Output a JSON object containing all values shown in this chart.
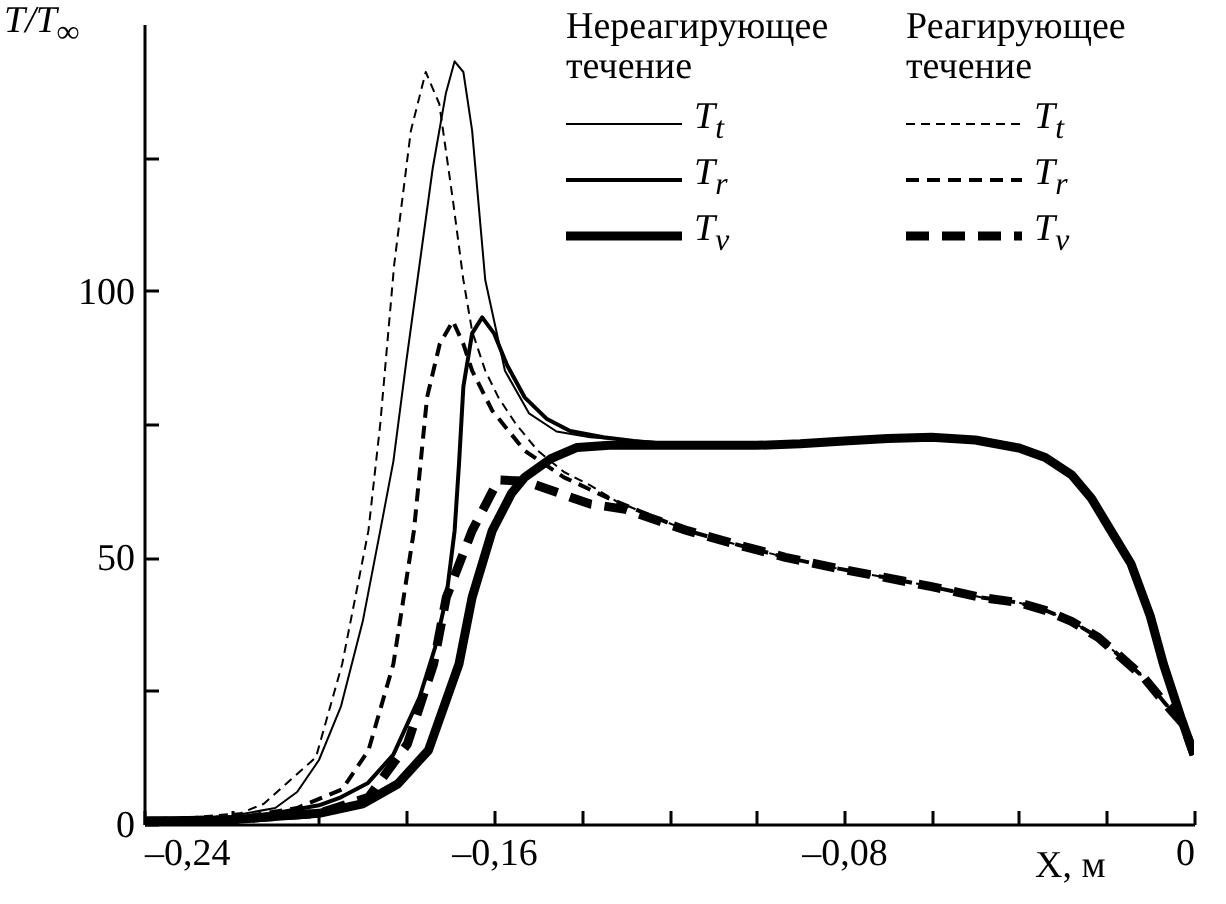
{
  "chart_data": {
    "type": "line",
    "xlabel": "X, м",
    "ylabel": "T/T$_{∞}$",
    "legend": "top right",
    "annotations": [
      "Нереагирующее течение",
      "Реагирующее течение"
    ],
    "xlim": [
      -0.24,
      0
    ],
    "ylim": [
      0,
      150
    ],
    "xticks": [
      {
        "value": -0.24,
        "label": "–0,24"
      },
      {
        "value": -0.22,
        "label": null
      },
      {
        "value": -0.2,
        "label": null
      },
      {
        "value": -0.18,
        "label": null
      },
      {
        "value": -0.16,
        "label": "–0,16"
      },
      {
        "value": -0.14,
        "label": null
      },
      {
        "value": -0.12,
        "label": null
      },
      {
        "value": -0.1,
        "label": null
      },
      {
        "value": -0.08,
        "label": "–0,08"
      },
      {
        "value": -0.06,
        "label": null
      },
      {
        "value": -0.04,
        "label": null
      },
      {
        "value": -0.02,
        "label": null
      },
      0
    ],
    "yticks": [
      0,
      {
        "value": 25,
        "label": null
      },
      50,
      {
        "value": 75,
        "label": null
      },
      100,
      {
        "value": 125,
        "label": null
      }
    ],
    "series": [
      {
        "name": "T$_{t}$",
        "color": "#000000",
        "line_style": "solid",
        "x": [
          -0.24,
          -0.23,
          -0.22,
          -0.21,
          -0.205,
          -0.2,
          -0.195,
          -0.19,
          -0.186,
          -0.183,
          -0.18,
          -0.177,
          -0.174,
          -0.171,
          -0.169,
          -0.167,
          -0.165,
          -0.162,
          -0.1575,
          -0.152,
          -0.1457,
          -0.138,
          -0.13,
          -0.12,
          -0.11,
          -0.1,
          -0.09,
          -0.08,
          -0.07,
          -0.06,
          -0.05,
          -0.04,
          -0.034,
          -0.028,
          -0.0234,
          -0.019,
          -0.0144,
          -0.01,
          -0.007,
          -0.003,
          0
        ],
        "values": [
          1,
          1,
          1.5,
          3,
          6,
          12,
          22,
          38,
          55,
          68,
          87,
          105,
          123,
          137,
          143,
          141,
          130,
          102,
          85,
          77,
          73.6,
          72.5,
          72,
          71.5,
          71,
          71,
          71.3,
          71.8,
          72.3,
          72.5,
          72,
          70.5,
          68.7,
          65.5,
          61,
          55,
          48.8,
          39,
          30,
          20,
          13
        ]
      },
      {
        "name": "T$_{r}$",
        "color": "#000000",
        "line_style": "solid",
        "x": [
          -0.24,
          -0.22,
          -0.21,
          -0.2,
          -0.195,
          -0.1888,
          -0.183,
          -0.177,
          -0.1735,
          -0.1709,
          -0.169,
          -0.168,
          -0.167,
          -0.165,
          -0.1627,
          -0.16,
          -0.157,
          -0.153,
          -0.148,
          -0.1426,
          -0.135,
          -0.128,
          -0.12,
          -0.11,
          -0.1,
          -0.09,
          -0.08,
          -0.07,
          -0.06,
          -0.05,
          -0.04,
          -0.034,
          -0.028,
          -0.0234,
          -0.019,
          -0.0144,
          -0.01,
          -0.007,
          -0.003,
          0
        ],
        "values": [
          1,
          1,
          2,
          3.5,
          5,
          7.7,
          13,
          23.8,
          33,
          42.5,
          55,
          67.5,
          82,
          92,
          95,
          92,
          86,
          80,
          76,
          73.7,
          72.5,
          71.8,
          71.2,
          71,
          71,
          71.3,
          71.8,
          72.3,
          72.5,
          72,
          70.5,
          68.7,
          65.5,
          61,
          55,
          48.8,
          39,
          30,
          20,
          13
        ]
      },
      {
        "name": "T$_{v}$",
        "color": "#000000",
        "line_style": "solid",
        "x": [
          -0.24,
          -0.22,
          -0.2,
          -0.19,
          -0.182,
          -0.175,
          -0.168,
          -0.165,
          -0.1604,
          -0.156,
          -0.153,
          -0.147,
          -0.141,
          -0.1336,
          -0.125,
          -0.12,
          -0.11,
          -0.1,
          -0.09,
          -0.08,
          -0.07,
          -0.06,
          -0.05,
          -0.04,
          -0.034,
          -0.028,
          -0.0234,
          -0.019,
          -0.0144,
          -0.01,
          -0.007,
          -0.003,
          0
        ],
        "values": [
          0.5,
          0.8,
          2,
          3.8,
          7.5,
          13.8,
          30,
          42.5,
          55,
          62,
          65,
          68.5,
          70.6,
          71,
          71,
          71,
          71,
          71,
          71.3,
          71.8,
          72.3,
          72.5,
          72,
          70.5,
          68.7,
          65.5,
          61,
          55,
          48.8,
          39,
          30,
          20,
          13
        ]
      },
      {
        "name": "T$_{t}$",
        "color": "#000000",
        "line_style": "dashed",
        "x": [
          -0.24,
          -0.23,
          -0.218,
          -0.2126,
          -0.2007,
          -0.1947,
          -0.1887,
          -0.186,
          -0.1828,
          -0.179,
          -0.1756,
          -0.1725,
          -0.1694,
          -0.167,
          -0.165,
          -0.162,
          -0.159,
          -0.155,
          -0.15,
          -0.144,
          -0.138,
          -0.132,
          -0.1158,
          -0.105,
          -0.0934,
          -0.082,
          -0.071,
          -0.06,
          -0.0487,
          -0.04,
          -0.0338,
          -0.028,
          -0.0219,
          -0.017,
          -0.0115,
          -0.007,
          -0.0025,
          0
        ],
        "values": [
          1,
          1.2,
          2,
          3.8,
          12.5,
          30,
          55,
          75,
          105,
          130,
          141,
          135,
          117,
          102,
          92.4,
          85,
          80,
          75,
          70,
          66,
          63.5,
          60.5,
          55,
          52.5,
          50,
          48,
          46.3,
          44.5,
          42.5,
          41.5,
          40,
          38,
          35,
          31.5,
          27.5,
          23,
          18.8,
          13
        ]
      },
      {
        "name": "T$_{r}$",
        "color": "#000000",
        "line_style": "dashed",
        "x": [
          -0.24,
          -0.22,
          -0.205,
          -0.1947,
          -0.1887,
          -0.183,
          -0.1783,
          -0.1753,
          -0.1724,
          -0.1694,
          -0.167,
          -0.165,
          -0.1604,
          -0.153,
          -0.144,
          -0.1336,
          -0.1158,
          -0.105,
          -0.0934,
          -0.082,
          -0.071,
          -0.06,
          -0.0487,
          -0.04,
          -0.0338,
          -0.028,
          -0.0219,
          -0.017,
          -0.0115,
          -0.007,
          -0.0025,
          0
        ],
        "values": [
          1,
          1,
          3,
          6.5,
          13.8,
          30,
          55,
          80,
          90,
          94.3,
          90,
          85,
          77.5,
          70,
          65,
          61,
          55,
          52.5,
          50,
          48,
          46.3,
          44.5,
          42.5,
          41.5,
          40,
          38,
          35,
          31.5,
          27.5,
          23,
          18.8,
          13
        ]
      },
      {
        "name": "T$_{v}$",
        "color": "#000000",
        "line_style": "dashed",
        "x": [
          -0.24,
          -0.22,
          -0.2,
          -0.1887,
          -0.1798,
          -0.1738,
          -0.1709,
          -0.165,
          -0.159,
          -0.153,
          -0.145,
          -0.138,
          -0.13,
          -0.1158,
          -0.105,
          -0.0934,
          -0.082,
          -0.071,
          -0.06,
          -0.0487,
          -0.04,
          -0.0338,
          -0.028,
          -0.0219,
          -0.017,
          -0.0115,
          -0.007,
          -0.0025,
          0
        ],
        "values": [
          0.5,
          0.8,
          2,
          5,
          15,
          30,
          42.5,
          55,
          64.5,
          64.3,
          62,
          60,
          59,
          55,
          52.5,
          50,
          48,
          46.3,
          44.5,
          42.5,
          41.5,
          40,
          38,
          35,
          31.5,
          27.5,
          23,
          18.8,
          13
        ]
      }
    ]
  }
}
